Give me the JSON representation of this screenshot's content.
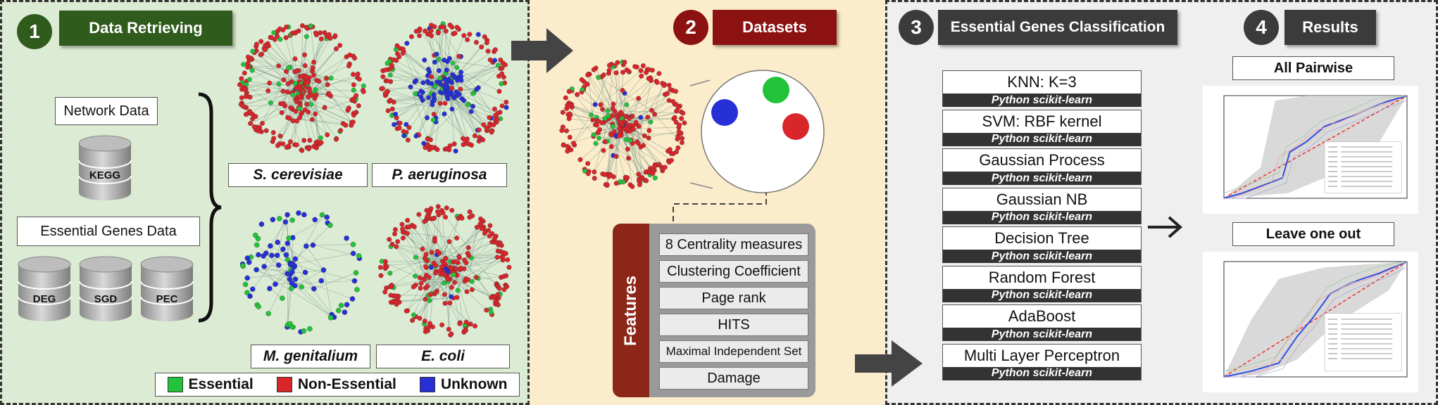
{
  "steps": [
    {
      "number": "1",
      "title": "Data Retrieving"
    },
    {
      "number": "2",
      "title": "Datasets"
    },
    {
      "number": "3",
      "title": "Essential Genes Classification"
    },
    {
      "number": "4",
      "title": "Results"
    }
  ],
  "data_retrieving": {
    "network_label": "Network Data",
    "network_dbs": [
      "KEGG"
    ],
    "essential_label": "Essential Genes Data",
    "essential_dbs": [
      "DEG",
      "SGD",
      "PEC"
    ]
  },
  "organisms": [
    "S. cerevisiae",
    "P. aeruginosa",
    "M. genitalium",
    "E. coli"
  ],
  "legend": [
    {
      "label": "Essential",
      "color": "#22c33a"
    },
    {
      "label": "Non-Essential",
      "color": "#d8262b"
    },
    {
      "label": "Unknown",
      "color": "#2630d6"
    }
  ],
  "features": {
    "title": "Features",
    "items": [
      "8 Centrality measures",
      "Clustering Coefficient",
      "Page rank",
      "HITS",
      "Maximal Independent Set",
      "Damage"
    ]
  },
  "classifiers": [
    {
      "name": "KNN: K=3",
      "library": "Python scikit-learn"
    },
    {
      "name": "SVM: RBF kernel",
      "library": "Python scikit-learn"
    },
    {
      "name": "Gaussian Process",
      "library": "Python scikit-learn"
    },
    {
      "name": "Gaussian NB",
      "library": "Python scikit-learn"
    },
    {
      "name": "Decision Tree",
      "library": "Python scikit-learn"
    },
    {
      "name": "Random Forest",
      "library": "Python scikit-learn"
    },
    {
      "name": "AdaBoost",
      "library": "Python scikit-learn"
    },
    {
      "name": "Multi Layer Perceptron",
      "library": "Python scikit-learn"
    }
  ],
  "results": [
    "All Pairwise",
    "Leave one out"
  ],
  "colors": {
    "step1": "#2f5b1c",
    "step2": "#8c1212",
    "step34": "#3b3b3b",
    "essential": "#22c33a",
    "non_essential": "#d8262b",
    "unknown": "#2630d6"
  }
}
